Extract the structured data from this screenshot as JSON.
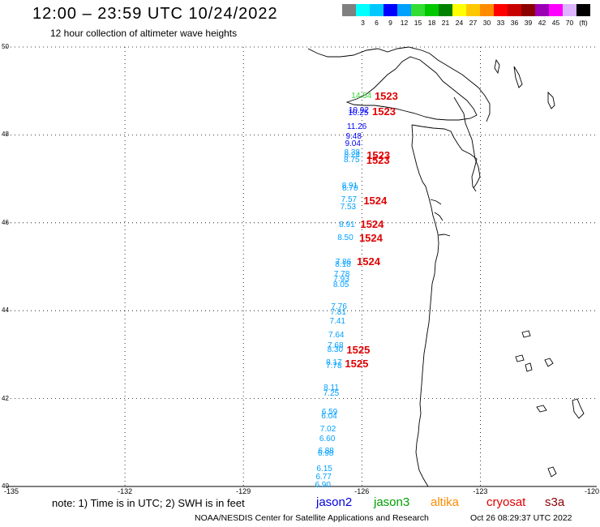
{
  "header": {
    "title": "12:00 – 23:59 UTC 10/24/2022",
    "subtitle": "12 hour collection of altimeter wave heights"
  },
  "legend": {
    "colors": [
      "#808080",
      "#00ffff",
      "#00c8ff",
      "#0000ff",
      "#00a0ff",
      "#33dd33",
      "#00c800",
      "#008200",
      "#ffff00",
      "#ffc800",
      "#ff8c00",
      "#ff0000",
      "#c80000",
      "#8c0000",
      "#9b00b4",
      "#ff00ff",
      "#dcb4ff",
      "#000000"
    ],
    "labels": [
      "3",
      "6",
      "9",
      "12",
      "15",
      "18",
      "21",
      "24",
      "27",
      "30",
      "33",
      "36",
      "39",
      "42",
      "45",
      "70",
      "(ft)"
    ]
  },
  "axes": {
    "lat_labels": [
      "50",
      "48",
      "46",
      "44",
      "42",
      "40"
    ],
    "lon_labels": [
      "-135",
      "-132",
      "-129",
      "-126",
      "-123",
      "-120"
    ]
  },
  "observations": [
    {
      "lat": 48.87,
      "lon": -125.98,
      "value": "14.54",
      "color": "#33dd33"
    },
    {
      "lat": 48.54,
      "lon": -126.05,
      "value": "10.92",
      "color": "#0000ff"
    },
    {
      "lat": 48.49,
      "lon": -126.06,
      "value": "10.25",
      "color": "#0000ff"
    },
    {
      "lat": 48.17,
      "lon": -126.09,
      "value": "11.26",
      "color": "#0000ff"
    },
    {
      "lat": 47.95,
      "lon": -126.12,
      "value": "9.48",
      "color": "#0000ff"
    },
    {
      "lat": 47.78,
      "lon": -126.14,
      "value": "9.04",
      "color": "#0000ff"
    },
    {
      "lat": 47.59,
      "lon": -126.16,
      "value": "8.38",
      "color": "#00a0ff"
    },
    {
      "lat": 47.53,
      "lon": -126.16,
      "value": "8.24",
      "color": "#00a0ff"
    },
    {
      "lat": 47.42,
      "lon": -126.17,
      "value": "8.75",
      "color": "#00a0ff"
    },
    {
      "lat": 46.83,
      "lon": -126.22,
      "value": "8.91",
      "color": "#00a0ff"
    },
    {
      "lat": 46.77,
      "lon": -126.21,
      "value": "8.70",
      "color": "#00a0ff"
    },
    {
      "lat": 46.51,
      "lon": -126.24,
      "value": "7.57",
      "color": "#00a0ff"
    },
    {
      "lat": 46.34,
      "lon": -126.26,
      "value": "7.53",
      "color": "#00a0ff"
    },
    {
      "lat": 45.95,
      "lon": -126.29,
      "value": "8.91",
      "color": "#00a0ff"
    },
    {
      "lat": 45.64,
      "lon": -126.33,
      "value": "8.50",
      "color": "#00a0ff"
    },
    {
      "lat": 45.1,
      "lon": -126.38,
      "value": "7.86",
      "color": "#00a0ff"
    },
    {
      "lat": 45.03,
      "lon": -126.39,
      "value": "8.18",
      "color": "#00a0ff"
    },
    {
      "lat": 44.82,
      "lon": -126.42,
      "value": "7.78",
      "color": "#00a0ff"
    },
    {
      "lat": 44.71,
      "lon": -126.43,
      "value": "7.93",
      "color": "#00a0ff"
    },
    {
      "lat": 44.57,
      "lon": -126.44,
      "value": "8.05",
      "color": "#00a0ff"
    },
    {
      "lat": 44.08,
      "lon": -126.49,
      "value": "7.76",
      "color": "#00a0ff"
    },
    {
      "lat": 43.94,
      "lon": -126.51,
      "value": "7.81",
      "color": "#00a0ff"
    },
    {
      "lat": 43.74,
      "lon": -126.53,
      "value": "7.41",
      "color": "#00a0ff"
    },
    {
      "lat": 43.44,
      "lon": -126.56,
      "value": "7.64",
      "color": "#00a0ff"
    },
    {
      "lat": 43.2,
      "lon": -126.58,
      "value": "7.68",
      "color": "#00a0ff"
    },
    {
      "lat": 43.1,
      "lon": -126.59,
      "value": "8.30",
      "color": "#00a0ff"
    },
    {
      "lat": 42.8,
      "lon": -126.62,
      "value": "8.17",
      "color": "#00a0ff"
    },
    {
      "lat": 42.73,
      "lon": -126.62,
      "value": "7.78",
      "color": "#00a0ff"
    },
    {
      "lat": 42.23,
      "lon": -126.68,
      "value": "8.11",
      "color": "#00a0ff"
    },
    {
      "lat": 42.11,
      "lon": -126.69,
      "value": "7.25",
      "color": "#00a0ff"
    },
    {
      "lat": 41.67,
      "lon": -126.73,
      "value": "6.59",
      "color": "#00a0ff"
    },
    {
      "lat": 41.59,
      "lon": -126.74,
      "value": "6.04",
      "color": "#00a0ff"
    },
    {
      "lat": 41.3,
      "lon": -126.77,
      "value": "7.02",
      "color": "#00a0ff"
    },
    {
      "lat": 41.07,
      "lon": -126.79,
      "value": "6.60",
      "color": "#00a0ff"
    },
    {
      "lat": 40.79,
      "lon": -126.82,
      "value": "6.88",
      "color": "#00a0ff"
    },
    {
      "lat": 40.74,
      "lon": -126.83,
      "value": "6.98",
      "color": "#00a0ff"
    },
    {
      "lat": 40.39,
      "lon": -126.86,
      "value": "6.15",
      "color": "#00a0ff"
    },
    {
      "lat": 40.21,
      "lon": -126.88,
      "value": "6.77",
      "color": "#00a0ff"
    },
    {
      "lat": 40.01,
      "lon": -126.9,
      "value": "6.90",
      "color": "#00a0ff"
    }
  ],
  "track_ids": [
    {
      "lat": 48.87,
      "lon": -125.35,
      "value": "1523"
    },
    {
      "lat": 48.53,
      "lon": -125.41,
      "value": "1523"
    },
    {
      "lat": 47.52,
      "lon": -125.55,
      "value": "1523"
    },
    {
      "lat": 47.41,
      "lon": -125.56,
      "value": "1523"
    },
    {
      "lat": 46.5,
      "lon": -125.63,
      "value": "1524"
    },
    {
      "lat": 45.96,
      "lon": -125.71,
      "value": "1524"
    },
    {
      "lat": 45.64,
      "lon": -125.74,
      "value": "1524"
    },
    {
      "lat": 45.11,
      "lon": -125.8,
      "value": "1524"
    },
    {
      "lat": 43.1,
      "lon": -126.06,
      "value": "1525"
    },
    {
      "lat": 42.79,
      "lon": -126.1,
      "value": "1525"
    }
  ],
  "footer": {
    "note": "note: 1) Time is in UTC; 2) SWH is in feet",
    "satellites": [
      {
        "name": "jason2",
        "color": "#0000dd"
      },
      {
        "name": "jason3",
        "color": "#00a000"
      },
      {
        "name": "altika",
        "color": "#ff8c00"
      },
      {
        "name": "cryosat",
        "color": "#e00000"
      },
      {
        "name": "s3a",
        "color": "#8c0000"
      }
    ],
    "credit": "NOAA/NESDIS Center for Satellite Applications and Research",
    "timestamp": "Oct 26 08:29:37 UTC 2022"
  }
}
